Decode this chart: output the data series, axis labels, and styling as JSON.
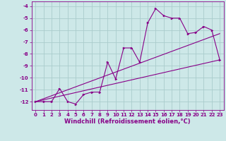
{
  "bg_color": "#cde8e8",
  "grid_color": "#aacccc",
  "line_color": "#880088",
  "xlabel": "Windchill (Refroidissement éolien,°C)",
  "xlabel_fontsize": 6.0,
  "tick_fontsize": 5.0,
  "yticks": [
    -4,
    -5,
    -6,
    -7,
    -8,
    -9,
    -10,
    -11,
    -12
  ],
  "ylim": [
    -12.7,
    -3.6
  ],
  "xlim": [
    -0.5,
    23.5
  ],
  "main_x": [
    0,
    1,
    2,
    3,
    4,
    5,
    6,
    7,
    8,
    9,
    10,
    11,
    12,
    13,
    14,
    15,
    16,
    17,
    18,
    19,
    20,
    21,
    22,
    23
  ],
  "main_y": [
    -12.0,
    -12.0,
    -12.0,
    -10.9,
    -12.0,
    -12.2,
    -11.4,
    -11.2,
    -11.2,
    -8.7,
    -10.1,
    -7.5,
    -7.5,
    -8.7,
    -5.4,
    -4.2,
    -4.8,
    -5.0,
    -5.0,
    -6.3,
    -6.2,
    -5.7,
    -6.0,
    -8.5
  ],
  "line1_x": [
    0,
    23
  ],
  "line1_y": [
    -12.0,
    -8.5
  ],
  "line2_x": [
    0,
    23
  ],
  "line2_y": [
    -12.0,
    -6.3
  ]
}
